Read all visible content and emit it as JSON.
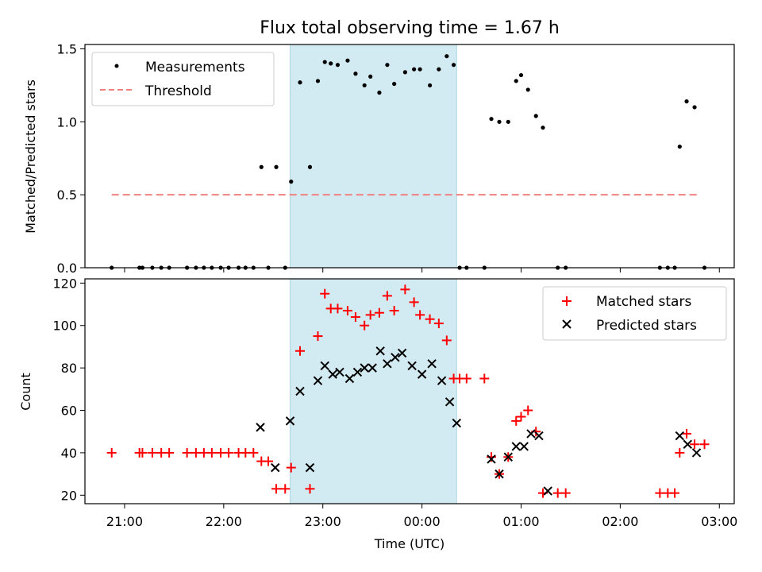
{
  "chart_data": [
    {
      "type": "scatter",
      "title": "Flux total observing time = 1.67 h",
      "xlabel": "",
      "ylabel": "Matched/Predicted stars",
      "ylim": [
        0,
        1.53
      ],
      "yticks": [
        "0.0",
        "0.5",
        "1.0",
        "1.5"
      ],
      "ytick_values": [
        0,
        0.5,
        1.0,
        1.5
      ],
      "xlim": [
        20.6,
        27.15
      ],
      "legend_placement": "upper-left",
      "shaded_interval": [
        22.67,
        24.35
      ],
      "shaded_color": "#add8e6",
      "series": [
        {
          "name": "Measurements",
          "marker": "dot",
          "color": "#000000",
          "x": [
            20.87,
            21.15,
            21.18,
            21.28,
            21.37,
            21.45,
            21.63,
            21.72,
            21.8,
            21.88,
            21.97,
            22.05,
            22.15,
            22.22,
            22.3,
            22.38,
            22.45,
            22.53,
            22.62,
            22.68,
            22.77,
            22.87,
            22.95,
            23.02,
            23.08,
            23.15,
            23.25,
            23.33,
            23.42,
            23.48,
            23.57,
            23.65,
            23.72,
            23.83,
            23.92,
            23.98,
            24.08,
            24.17,
            24.25,
            24.32,
            24.38,
            24.45,
            24.63,
            24.7,
            24.78,
            24.87,
            24.95,
            25.0,
            25.07,
            25.15,
            25.22,
            25.37,
            25.45,
            26.4,
            26.48,
            26.55,
            26.6,
            26.67,
            26.75,
            26.85
          ],
          "y": [
            0,
            0,
            0,
            0,
            0,
            0,
            0,
            0,
            0,
            0,
            0,
            0,
            0,
            0,
            0,
            0.69,
            0,
            0.69,
            0,
            0.59,
            1.27,
            0.69,
            1.28,
            1.41,
            1.4,
            1.39,
            1.42,
            1.33,
            1.25,
            1.31,
            1.2,
            1.39,
            1.26,
            1.34,
            1.36,
            1.36,
            1.25,
            1.36,
            1.45,
            1.39,
            0,
            0,
            0,
            1.02,
            1.0,
            1.0,
            1.28,
            1.32,
            1.22,
            1.04,
            0.96,
            0,
            0,
            0,
            0,
            0,
            0.83,
            1.14,
            1.1,
            0
          ]
        },
        {
          "name": "Threshold",
          "marker": "dashed-line",
          "color": "#f08080",
          "x": [
            20.87,
            26.8
          ],
          "y": [
            0.5,
            0.5
          ]
        }
      ]
    },
    {
      "type": "scatter",
      "title": "",
      "xlabel": "Time (UTC)",
      "ylabel": "Count",
      "ylim": [
        16,
        122
      ],
      "yticks": [
        "20",
        "40",
        "60",
        "80",
        "100",
        "120"
      ],
      "ytick_values": [
        20,
        40,
        60,
        80,
        100,
        120
      ],
      "xlim": [
        20.6,
        27.15
      ],
      "xticks": [
        "21:00",
        "22:00",
        "23:00",
        "00:00",
        "01:00",
        "02:00",
        "03:00"
      ],
      "xtick_values": [
        21,
        22,
        23,
        24,
        25,
        26,
        27
      ],
      "legend_placement": "upper-right",
      "shaded_interval": [
        22.67,
        24.35
      ],
      "shaded_color": "#add8e6",
      "series": [
        {
          "name": "Matched stars",
          "marker": "plus",
          "color": "#ff0000",
          "x": [
            20.87,
            21.15,
            21.18,
            21.28,
            21.37,
            21.45,
            21.63,
            21.72,
            21.8,
            21.88,
            21.97,
            22.05,
            22.15,
            22.22,
            22.3,
            22.38,
            22.45,
            22.53,
            22.62,
            22.68,
            22.77,
            22.87,
            22.95,
            23.02,
            23.08,
            23.15,
            23.25,
            23.33,
            23.42,
            23.48,
            23.57,
            23.65,
            23.72,
            23.83,
            23.92,
            23.98,
            24.08,
            24.17,
            24.25,
            24.32,
            24.38,
            24.45,
            24.63,
            24.7,
            24.78,
            24.87,
            24.95,
            25.0,
            25.07,
            25.15,
            25.22,
            25.37,
            25.45,
            26.4,
            26.48,
            26.55,
            26.6,
            26.67,
            26.75,
            26.85
          ],
          "y": [
            40,
            40,
            40,
            40,
            40,
            40,
            40,
            40,
            40,
            40,
            40,
            40,
            40,
            40,
            40,
            36,
            36,
            23,
            23,
            33,
            88,
            23,
            95,
            115,
            108,
            108,
            107,
            104,
            100,
            105,
            106,
            114,
            107,
            117,
            111,
            105,
            103,
            101,
            93,
            75,
            75,
            75,
            75,
            38,
            30,
            38,
            55,
            57,
            60,
            50,
            21,
            21,
            21,
            21,
            21,
            21,
            40,
            49,
            44,
            44
          ]
        },
        {
          "name": "Predicted stars",
          "marker": "x",
          "color": "#000000",
          "x": [
            22.37,
            22.52,
            22.67,
            22.77,
            22.87,
            22.95,
            23.02,
            23.1,
            23.17,
            23.27,
            23.35,
            23.42,
            23.5,
            23.58,
            23.65,
            23.73,
            23.8,
            23.9,
            24.0,
            24.1,
            24.2,
            24.28,
            24.35,
            24.7,
            24.78,
            24.87,
            24.95,
            25.03,
            25.1,
            25.18,
            25.27,
            26.6,
            26.68,
            26.77
          ],
          "y": [
            52,
            33,
            55,
            69,
            33,
            74,
            81,
            77,
            78,
            75,
            78,
            80,
            80,
            88,
            82,
            85,
            87,
            81,
            77,
            82,
            74,
            64,
            54,
            37,
            30,
            38,
            43,
            43,
            49,
            48,
            22,
            48,
            44,
            40
          ]
        }
      ]
    }
  ]
}
